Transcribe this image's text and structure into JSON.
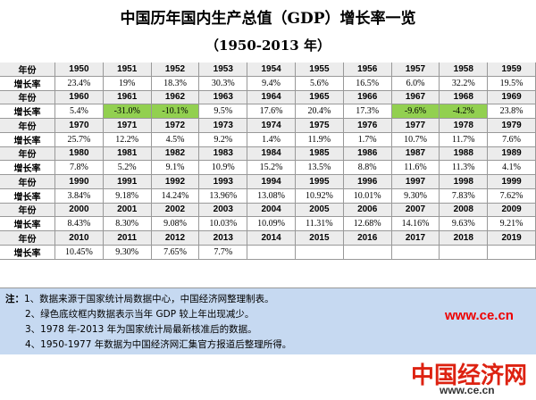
{
  "header": {
    "title": "中国历年国内生产总值（GDP）增长率一览",
    "subtitle": "（1950-2013 年）"
  },
  "table": {
    "year_label": "年份",
    "rate_label": "增长率",
    "blocks": [
      {
        "years": [
          "1950",
          "1951",
          "1952",
          "1953",
          "1954",
          "1955",
          "1956",
          "1957",
          "1958",
          "1959"
        ],
        "rates": [
          "23.4%",
          "19%",
          "18.3%",
          "30.3%",
          "9.4%",
          "5.6%",
          "16.5%",
          "6.0%",
          "32.2%",
          "19.5%"
        ]
      },
      {
        "years": [
          "1960",
          "1961",
          "1962",
          "1963",
          "1964",
          "1965",
          "1966",
          "1967",
          "1968",
          "1969"
        ],
        "rates": [
          "5.4%",
          "-31.0%",
          "-10.1%",
          "9.5%",
          "17.6%",
          "20.4%",
          "17.3%",
          "-9.6%",
          "-4.2%",
          "23.8%"
        ]
      },
      {
        "years": [
          "1970",
          "1971",
          "1972",
          "1973",
          "1974",
          "1975",
          "1976",
          "1977",
          "1978",
          "1979"
        ],
        "rates": [
          "25.7%",
          "12.2%",
          "4.5%",
          "9.2%",
          "1.4%",
          "11.9%",
          "1.7%",
          "10.7%",
          "11.7%",
          "7.6%"
        ]
      },
      {
        "years": [
          "1980",
          "1981",
          "1982",
          "1983",
          "1984",
          "1985",
          "1986",
          "1987",
          "1988",
          "1989"
        ],
        "rates": [
          "7.8%",
          "5.2%",
          "9.1%",
          "10.9%",
          "15.2%",
          "13.5%",
          "8.8%",
          "11.6%",
          "11.3%",
          "4.1%"
        ]
      },
      {
        "years": [
          "1990",
          "1991",
          "1992",
          "1993",
          "1994",
          "1995",
          "1996",
          "1997",
          "1998",
          "1999"
        ],
        "rates": [
          "3.84%",
          "9.18%",
          "14.24%",
          "13.96%",
          "13.08%",
          "10.92%",
          "10.01%",
          "9.30%",
          "7.83%",
          "7.62%"
        ]
      },
      {
        "years": [
          "2000",
          "2001",
          "2002",
          "2003",
          "2004",
          "2005",
          "2006",
          "2007",
          "2008",
          "2009"
        ],
        "rates": [
          "8.43%",
          "8.30%",
          "9.08%",
          "10.03%",
          "10.09%",
          "11.31%",
          "12.68%",
          "14.16%",
          "9.63%",
          "9.21%"
        ]
      },
      {
        "years": [
          "2010",
          "2011",
          "2012",
          "2013",
          "2014",
          "2015",
          "2016",
          "2017",
          "2018",
          "2019"
        ],
        "rates": [
          "10.45%",
          "9.30%",
          "7.65%",
          "7.7%"
        ]
      }
    ]
  },
  "notes": {
    "prefix": "注：",
    "items": [
      "1、数据来源于国家统计局数据中心，中国经济网整理制表。",
      "2、绿色底纹框内数据表示当年 GDP 较上年出现减少。",
      "3、1978 年-2013 年为国家统计局最新核准后的数据。",
      "4、1950-1977 年数据为中国经济网汇集官方报道后整理所得。"
    ],
    "site": "www.ce.cn"
  },
  "logo": {
    "name": "中国经济网",
    "url": "www.ce.cn"
  }
}
